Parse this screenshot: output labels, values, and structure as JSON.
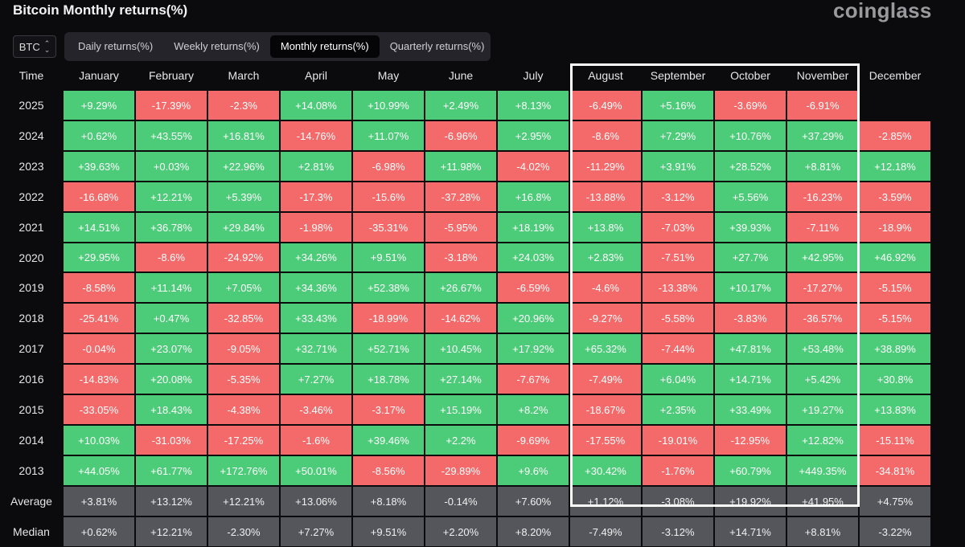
{
  "title": "Bitcoin Monthly returns(%)",
  "brand": "coinglass",
  "ticker": {
    "value": "BTC",
    "icon": "up-down-chevron-icon"
  },
  "tabs": [
    {
      "label": "Daily returns(%)",
      "active": false
    },
    {
      "label": "Weekly returns(%)",
      "active": false
    },
    {
      "label": "Monthly returns(%)",
      "active": true
    },
    {
      "label": "Quarterly returns(%)",
      "active": false
    }
  ],
  "colors": {
    "positive": "#4ccb78",
    "negative": "#f46a6a",
    "stat": "#54565c",
    "background": "#0b0b0e"
  },
  "chart_data": {
    "type": "heatmap",
    "title": "Bitcoin Monthly returns(%)",
    "corner_label": "Time",
    "highlighted_columns": [
      "August",
      "September",
      "October",
      "November"
    ],
    "columns": [
      "January",
      "February",
      "March",
      "April",
      "May",
      "June",
      "July",
      "August",
      "September",
      "October",
      "November",
      "December"
    ],
    "rows": [
      {
        "label": "2025",
        "values": [
          "+9.29%",
          "-17.39%",
          "-2.3%",
          "+14.08%",
          "+10.99%",
          "+2.49%",
          "+8.13%",
          "-6.49%",
          "+5.16%",
          "-3.69%",
          "-6.91%",
          ""
        ]
      },
      {
        "label": "2024",
        "values": [
          "+0.62%",
          "+43.55%",
          "+16.81%",
          "-14.76%",
          "+11.07%",
          "-6.96%",
          "+2.95%",
          "-8.6%",
          "+7.29%",
          "+10.76%",
          "+37.29%",
          "-2.85%"
        ]
      },
      {
        "label": "2023",
        "values": [
          "+39.63%",
          "+0.03%",
          "+22.96%",
          "+2.81%",
          "-6.98%",
          "+11.98%",
          "-4.02%",
          "-11.29%",
          "+3.91%",
          "+28.52%",
          "+8.81%",
          "+12.18%"
        ]
      },
      {
        "label": "2022",
        "values": [
          "-16.68%",
          "+12.21%",
          "+5.39%",
          "-17.3%",
          "-15.6%",
          "-37.28%",
          "+16.8%",
          "-13.88%",
          "-3.12%",
          "+5.56%",
          "-16.23%",
          "-3.59%"
        ]
      },
      {
        "label": "2021",
        "values": [
          "+14.51%",
          "+36.78%",
          "+29.84%",
          "-1.98%",
          "-35.31%",
          "-5.95%",
          "+18.19%",
          "+13.8%",
          "-7.03%",
          "+39.93%",
          "-7.11%",
          "-18.9%"
        ]
      },
      {
        "label": "2020",
        "values": [
          "+29.95%",
          "-8.6%",
          "-24.92%",
          "+34.26%",
          "+9.51%",
          "-3.18%",
          "+24.03%",
          "+2.83%",
          "-7.51%",
          "+27.7%",
          "+42.95%",
          "+46.92%"
        ]
      },
      {
        "label": "2019",
        "values": [
          "-8.58%",
          "+11.14%",
          "+7.05%",
          "+34.36%",
          "+52.38%",
          "+26.67%",
          "-6.59%",
          "-4.6%",
          "-13.38%",
          "+10.17%",
          "-17.27%",
          "-5.15%"
        ]
      },
      {
        "label": "2018",
        "values": [
          "-25.41%",
          "+0.47%",
          "-32.85%",
          "+33.43%",
          "-18.99%",
          "-14.62%",
          "+20.96%",
          "-9.27%",
          "-5.58%",
          "-3.83%",
          "-36.57%",
          "-5.15%"
        ]
      },
      {
        "label": "2017",
        "values": [
          "-0.04%",
          "+23.07%",
          "-9.05%",
          "+32.71%",
          "+52.71%",
          "+10.45%",
          "+17.92%",
          "+65.32%",
          "-7.44%",
          "+47.81%",
          "+53.48%",
          "+38.89%"
        ]
      },
      {
        "label": "2016",
        "values": [
          "-14.83%",
          "+20.08%",
          "-5.35%",
          "+7.27%",
          "+18.78%",
          "+27.14%",
          "-7.67%",
          "-7.49%",
          "+6.04%",
          "+14.71%",
          "+5.42%",
          "+30.8%"
        ]
      },
      {
        "label": "2015",
        "values": [
          "-33.05%",
          "+18.43%",
          "-4.38%",
          "-3.46%",
          "-3.17%",
          "+15.19%",
          "+8.2%",
          "-18.67%",
          "+2.35%",
          "+33.49%",
          "+19.27%",
          "+13.83%"
        ]
      },
      {
        "label": "2014",
        "values": [
          "+10.03%",
          "-31.03%",
          "-17.25%",
          "-1.6%",
          "+39.46%",
          "+2.2%",
          "-9.69%",
          "-17.55%",
          "-19.01%",
          "-12.95%",
          "+12.82%",
          "-15.11%"
        ]
      },
      {
        "label": "2013",
        "values": [
          "+44.05%",
          "+61.77%",
          "+172.76%",
          "+50.01%",
          "-8.56%",
          "-29.89%",
          "+9.6%",
          "+30.42%",
          "-1.76%",
          "+60.79%",
          "+449.35%",
          "-34.81%"
        ]
      }
    ],
    "summary": [
      {
        "label": "Average",
        "values": [
          "+3.81%",
          "+13.12%",
          "+12.21%",
          "+13.06%",
          "+8.18%",
          "-0.14%",
          "+7.60%",
          "+1.12%",
          "-3.08%",
          "+19.92%",
          "+41.95%",
          "+4.75%"
        ]
      },
      {
        "label": "Median",
        "values": [
          "+0.62%",
          "+12.21%",
          "-2.30%",
          "+7.27%",
          "+9.51%",
          "+2.20%",
          "+8.20%",
          "-7.49%",
          "-3.12%",
          "+14.71%",
          "+8.81%",
          "-3.22%"
        ]
      }
    ]
  }
}
